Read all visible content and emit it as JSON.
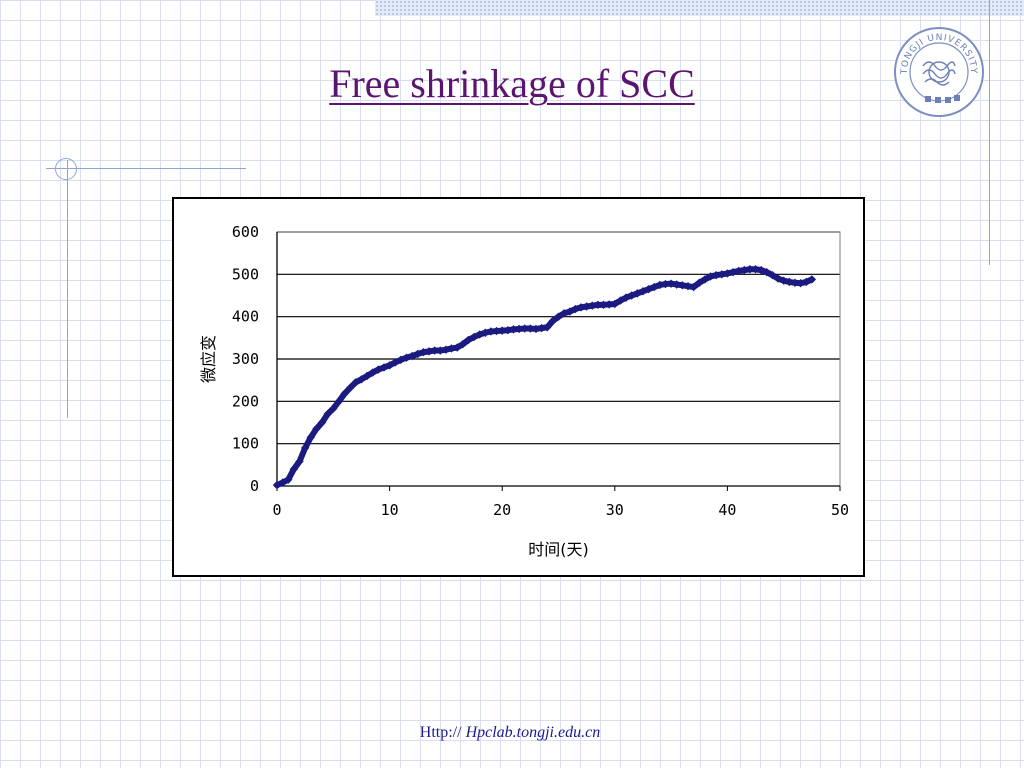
{
  "slide": {
    "title": "Free shrinkage of SCC",
    "footer_prefix": "Http://",
    "footer_url": "Hpclab.tongji.edu.cn",
    "logo_text": "TONGJI UNIVERSITY"
  },
  "colors": {
    "title": "#5b1470",
    "series": "#1a1a80",
    "grid_decor": "#8fa5d8",
    "footer": "#1a1a8c"
  },
  "chart_data": {
    "type": "scatter",
    "title": "",
    "xlabel": "时间(天)",
    "ylabel": "微应变",
    "xlim": [
      0,
      50
    ],
    "ylim": [
      0,
      600
    ],
    "x_ticks": [
      "0",
      "10",
      "20",
      "30",
      "40",
      "50"
    ],
    "y_ticks": [
      "0",
      "100",
      "200",
      "300",
      "400",
      "500",
      "600"
    ],
    "grid": "horizontal",
    "legend": "none",
    "series": [
      {
        "x": [
          0,
          0.5,
          1,
          1.5,
          2,
          2.5,
          3,
          3.5,
          4,
          4.5,
          5,
          5.5,
          6,
          6.5,
          7,
          7.5,
          8,
          8.5,
          9,
          9.5,
          10,
          10.5,
          11,
          11.5,
          12,
          12.5,
          13,
          13.5,
          14,
          14.5,
          15,
          15.5,
          16,
          16.5,
          17,
          17.5,
          18,
          18.5,
          19,
          19.5,
          20,
          20.5,
          21,
          21.5,
          22,
          22.5,
          23,
          23.5,
          24,
          24.5,
          25,
          25.5,
          26,
          26.5,
          27,
          27.5,
          28,
          28.5,
          29,
          29.5,
          30,
          30.5,
          31,
          31.5,
          32,
          32.5,
          33,
          33.5,
          34,
          34.5,
          35,
          35.5,
          36,
          36.5,
          37,
          37.5,
          38,
          38.5,
          39,
          39.5,
          40,
          40.5,
          41,
          41.5,
          42,
          42.5,
          43,
          43.5,
          44,
          44.5,
          45,
          45.5,
          46,
          46.5,
          47,
          47.5
        ],
        "y": [
          2,
          8,
          15,
          40,
          58,
          90,
          115,
          135,
          150,
          170,
          183,
          200,
          218,
          232,
          245,
          252,
          260,
          268,
          275,
          280,
          285,
          292,
          298,
          303,
          307,
          312,
          316,
          318,
          320,
          320,
          322,
          325,
          327,
          335,
          345,
          352,
          358,
          362,
          365,
          366,
          367,
          368,
          370,
          371,
          372,
          372,
          371,
          373,
          375,
          390,
          400,
          408,
          412,
          418,
          422,
          424,
          426,
          428,
          428,
          429,
          430,
          438,
          445,
          450,
          455,
          460,
          465,
          470,
          475,
          477,
          478,
          476,
          474,
          472,
          470,
          480,
          488,
          495,
          498,
          500,
          502,
          505,
          508,
          510,
          512,
          512,
          510,
          505,
          498,
          490,
          485,
          482,
          480,
          479,
          482,
          488
        ]
      }
    ]
  }
}
